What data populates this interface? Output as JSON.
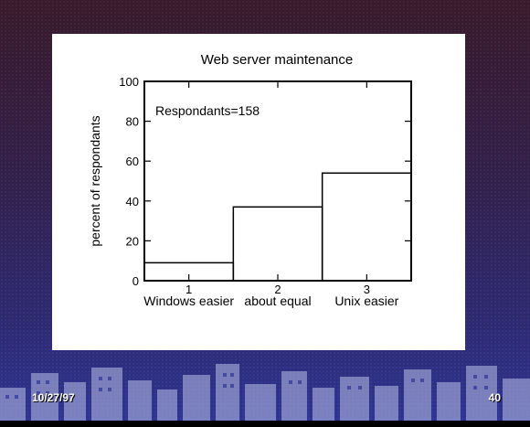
{
  "slide": {
    "date": "10/27/97",
    "page_number": "40"
  },
  "chart_data": {
    "type": "bar",
    "title": "Web server maintenance",
    "xlabel": "",
    "ylabel": "percent of respondants",
    "annotation": "Respondants=158",
    "categories": [
      "1",
      "2",
      "3"
    ],
    "category_labels": [
      "Windows easier",
      "about equal",
      "Unix easier"
    ],
    "values": [
      9,
      37,
      54
    ],
    "ylim": [
      0,
      100
    ],
    "yticks": [
      "0",
      "20",
      "40",
      "60",
      "80",
      "100"
    ],
    "grid": false,
    "legend": "none",
    "bar_style": "step outline"
  },
  "colors": {
    "panel_background": "#ffffff",
    "bar_outline": "#000000",
    "footer_text": "#ffffff"
  }
}
